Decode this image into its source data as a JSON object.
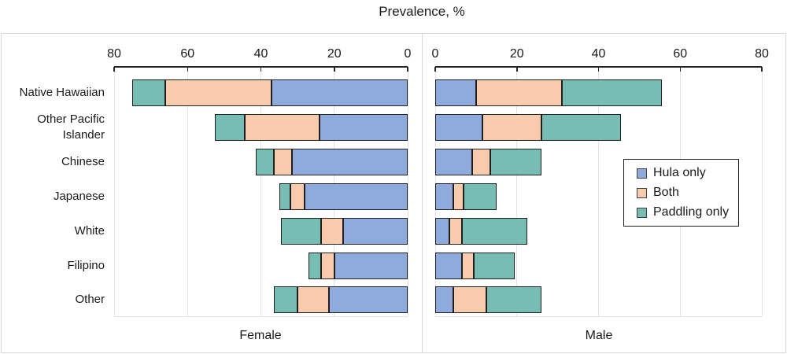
{
  "title": "Prevalence, %",
  "colors": {
    "hula_only": "#8FAADC",
    "both": "#F8CBAD",
    "paddling_only": "#77BDB3",
    "bar_border": "#1F1F1F",
    "axis": "#262626",
    "gridline": "#E4E4E4",
    "panel_border": "#D9D9D9",
    "text": "#1A1A1A"
  },
  "legend": {
    "items": [
      {
        "label": "Hula only",
        "color": "#8FAADC"
      },
      {
        "label": "Both",
        "color": "#F8CBAD"
      },
      {
        "label": "Paddling only",
        "color": "#77BDB3"
      }
    ]
  },
  "chart_data": {
    "type": "bar",
    "variant": "diverging-stacked-horizontal",
    "title": "Prevalence, %",
    "categories": [
      "Native Hawaiian",
      "Other Pacific Islander",
      "Chinese",
      "Japanese",
      "White",
      "Filipino",
      "Other"
    ],
    "x_ticks": [
      0,
      20,
      40,
      60,
      80
    ],
    "xlim": [
      0,
      80
    ],
    "grid": true,
    "legend_labels": [
      "Hula only",
      "Both",
      "Paddling only"
    ],
    "legend_position": "middle-right",
    "panels": [
      {
        "name": "Female",
        "direction": "left",
        "series": [
          {
            "name": "Hula only",
            "values": [
              37,
              24,
              31.5,
              28,
              17.5,
              20,
              21.5
            ]
          },
          {
            "name": "Both",
            "values": [
              29,
              20.5,
              5,
              4,
              6,
              3.5,
              8.5
            ]
          },
          {
            "name": "Paddling only",
            "values": [
              9,
              8,
              5,
              3,
              11,
              3.5,
              6.5
            ]
          }
        ]
      },
      {
        "name": "Male",
        "direction": "right",
        "series": [
          {
            "name": "Hula only",
            "values": [
              10,
              11.5,
              9,
              4.5,
              3.5,
              6.5,
              4.5
            ]
          },
          {
            "name": "Both",
            "values": [
              21,
              14.5,
              4.5,
              2.5,
              3,
              3,
              8
            ]
          },
          {
            "name": "Paddling only",
            "values": [
              24.5,
              19.5,
              12.5,
              8,
              16,
              10,
              13.5
            ]
          }
        ]
      }
    ]
  }
}
